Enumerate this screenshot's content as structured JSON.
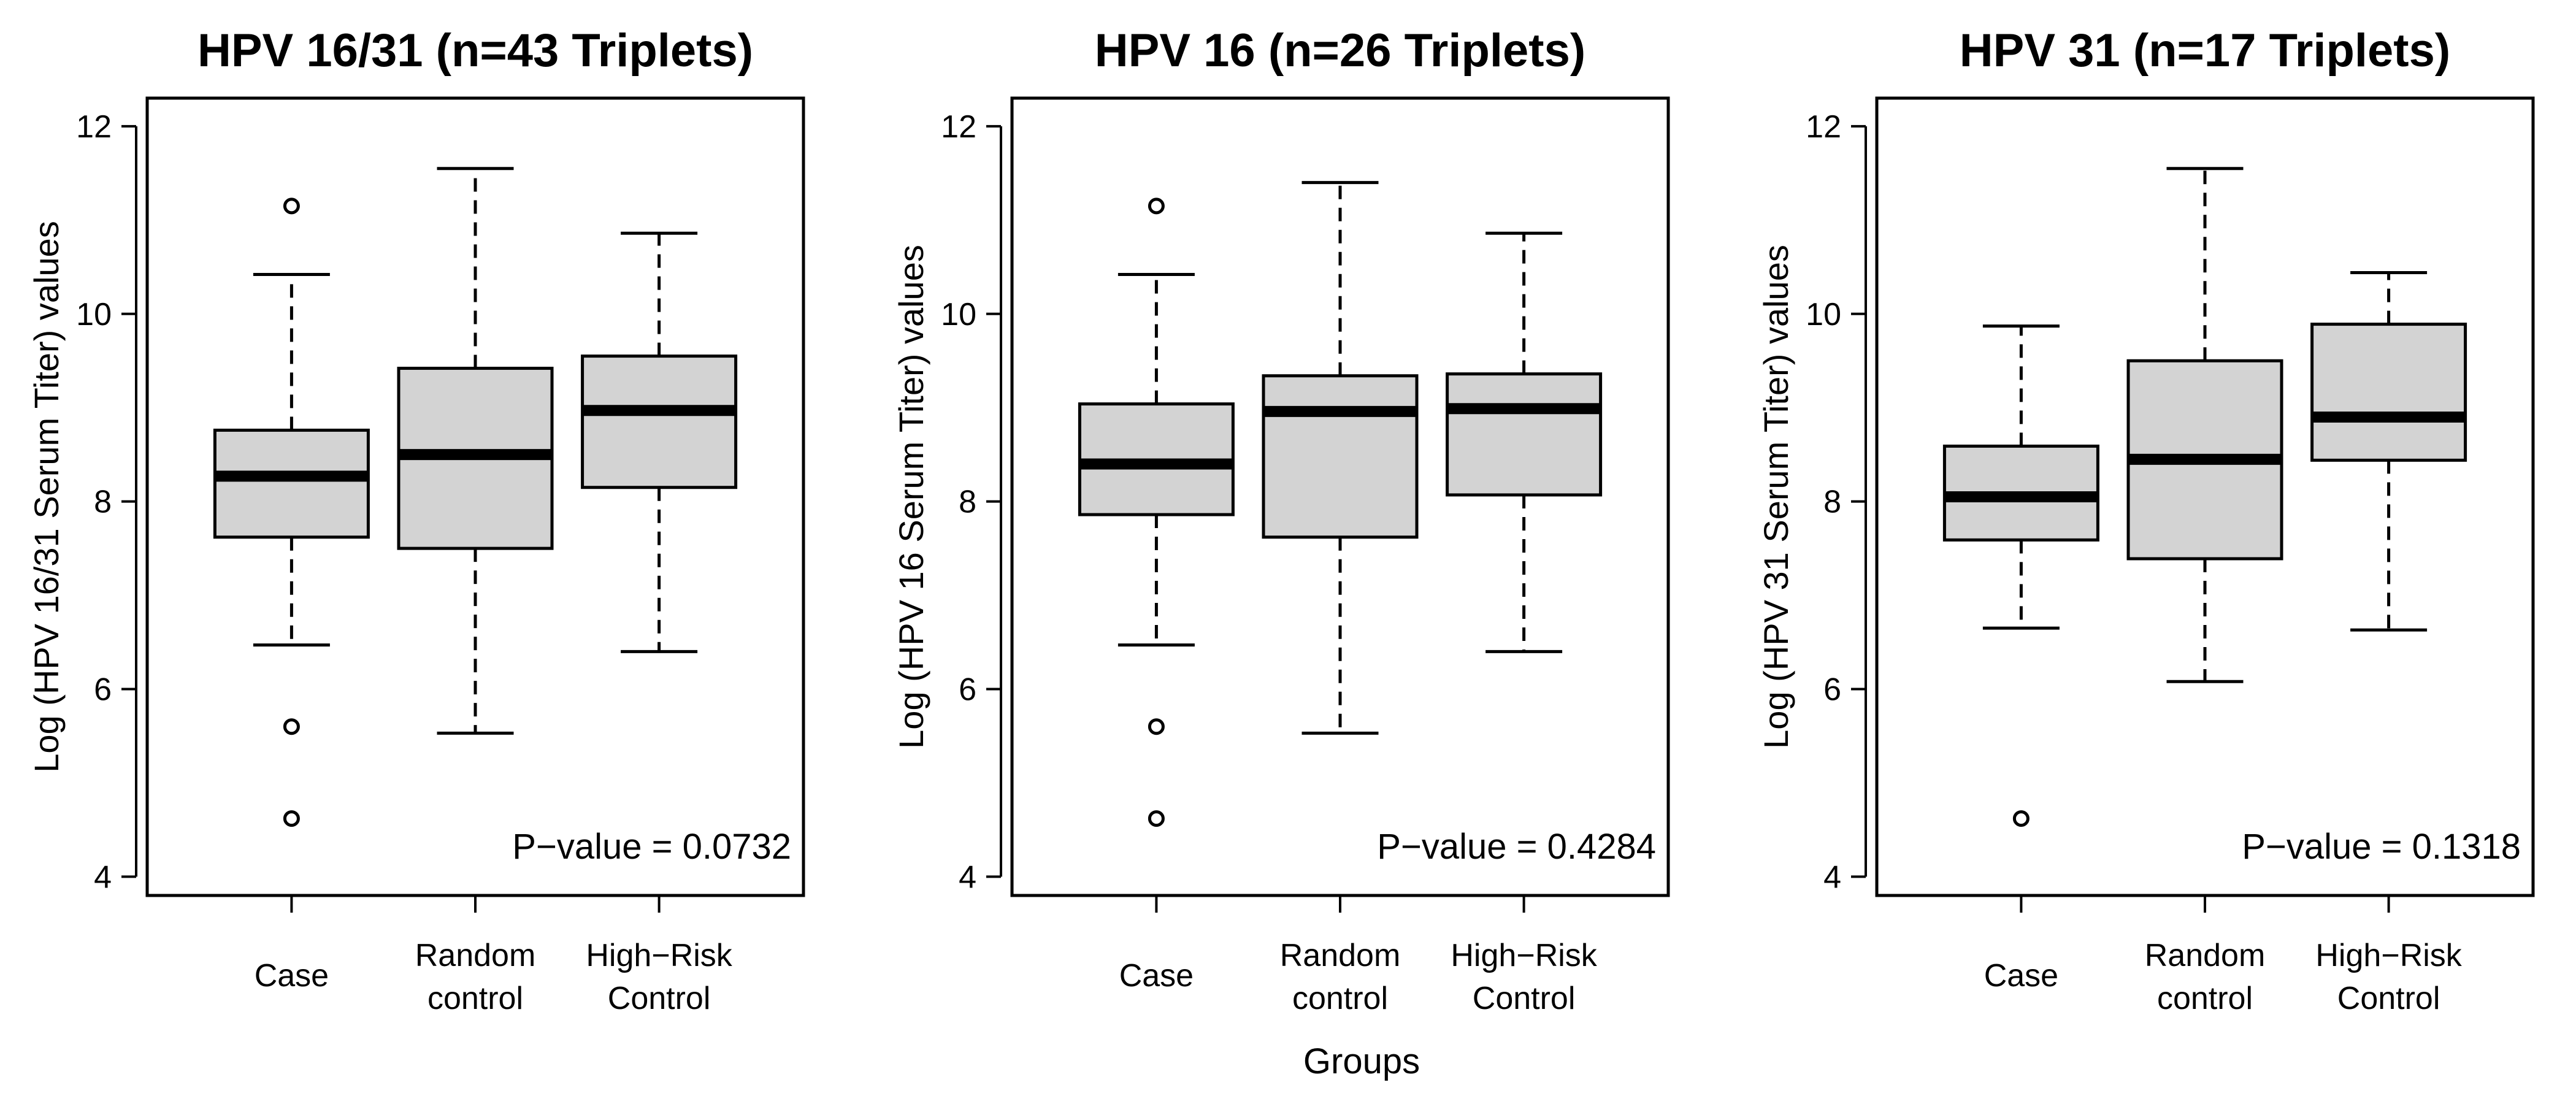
{
  "chart_data": {
    "type": "boxplot",
    "xlabel": "Groups",
    "categories": [
      [
        "Case"
      ],
      [
        "Random",
        "control"
      ],
      [
        "High−Risk",
        "Control"
      ]
    ],
    "yticks": [
      4,
      6,
      8,
      10,
      12
    ],
    "ylim": [
      3.8,
      12.3
    ],
    "panels": [
      {
        "title": "HPV 16/31 (n=43 Triplets)",
        "ylabel": "Log (HPV 16/31 Serum Titer) values",
        "pvalue": "P−value = 0.0732",
        "boxes": [
          {
            "name": "Case",
            "whisker_low": 6.47,
            "q1": 7.62,
            "median": 8.27,
            "q3": 8.76,
            "whisker_high": 10.42,
            "outliers": [
              11.15,
              5.6,
              4.62
            ]
          },
          {
            "name": "Random control",
            "whisker_low": 5.53,
            "q1": 7.5,
            "median": 8.5,
            "q3": 9.42,
            "whisker_high": 11.55,
            "outliers": []
          },
          {
            "name": "High-Risk Control",
            "whisker_low": 6.4,
            "q1": 8.15,
            "median": 8.97,
            "q3": 9.55,
            "whisker_high": 10.86,
            "outliers": []
          }
        ]
      },
      {
        "title": "HPV 16 (n=26 Triplets)",
        "ylabel": "Log (HPV 16 Serum Titer) values",
        "pvalue": "P−value = 0.4284",
        "boxes": [
          {
            "name": "Case",
            "whisker_low": 6.47,
            "q1": 7.86,
            "median": 8.4,
            "q3": 9.04,
            "whisker_high": 10.42,
            "outliers": [
              11.15,
              5.6,
              4.62
            ]
          },
          {
            "name": "Random control",
            "whisker_low": 5.53,
            "q1": 7.62,
            "median": 8.96,
            "q3": 9.34,
            "whisker_high": 11.4,
            "outliers": []
          },
          {
            "name": "High-Risk Control",
            "whisker_low": 6.4,
            "q1": 8.07,
            "median": 8.99,
            "q3": 9.36,
            "whisker_high": 10.86,
            "outliers": []
          }
        ]
      },
      {
        "title": "HPV 31 (n=17 Triplets)",
        "ylabel": "Log (HPV 31 Serum Titer) values",
        "pvalue": "P−value = 0.1318",
        "boxes": [
          {
            "name": "Case",
            "whisker_low": 6.65,
            "q1": 7.59,
            "median": 8.05,
            "q3": 8.59,
            "whisker_high": 9.87,
            "outliers": [
              4.62
            ]
          },
          {
            "name": "Random control",
            "whisker_low": 6.08,
            "q1": 7.39,
            "median": 8.45,
            "q3": 9.5,
            "whisker_high": 11.55,
            "outliers": []
          },
          {
            "name": "High-Risk Control",
            "whisker_low": 6.63,
            "q1": 8.44,
            "median": 8.9,
            "q3": 9.89,
            "whisker_high": 10.44,
            "outliers": []
          }
        ]
      }
    ]
  }
}
